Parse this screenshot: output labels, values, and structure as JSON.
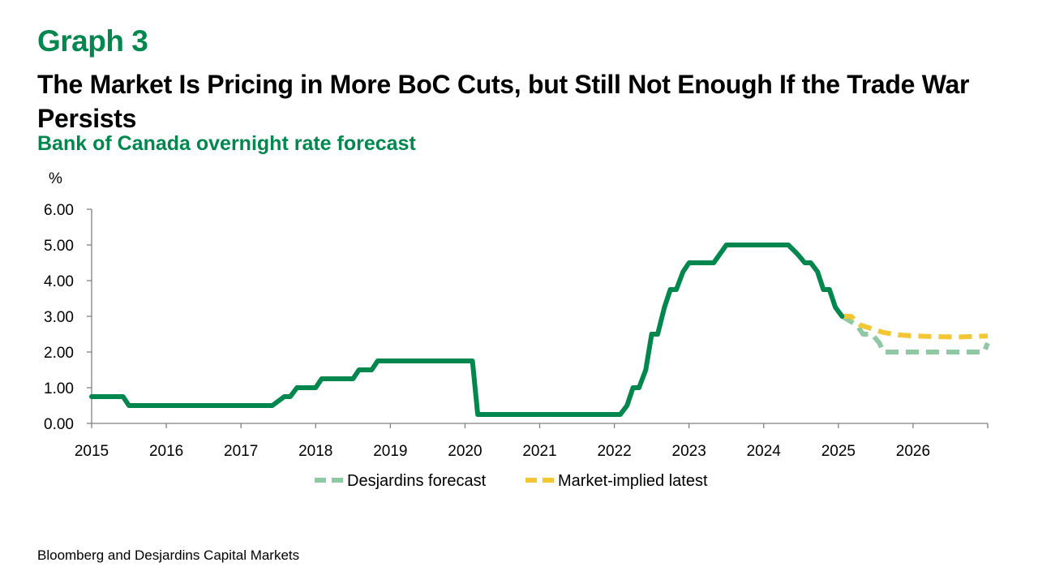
{
  "header": {
    "graph_label": "Graph 3",
    "title": "The Market Is Pricing in More BoC Cuts, but Still Not Enough If the Trade War Persists",
    "subtitle": "Bank of Canada overnight rate forecast"
  },
  "footer": {
    "source": "Bloomberg and Desjardins Capital Markets"
  },
  "chart_data": {
    "type": "line",
    "title": "",
    "xlabel": "",
    "ylabel": "%",
    "ylim": [
      0,
      6
    ],
    "xlim": [
      2015,
      2027
    ],
    "y_ticks": [
      "0.00",
      "1.00",
      "2.00",
      "3.00",
      "4.00",
      "5.00",
      "6.00"
    ],
    "x_ticks": [
      "2015",
      "2016",
      "2017",
      "2018",
      "2019",
      "2020",
      "2021",
      "2022",
      "2023",
      "2024",
      "2025",
      "2026"
    ],
    "grid": false,
    "legend_position": "bottom",
    "legend": [
      "Desjardins forecast",
      "Market-implied latest"
    ],
    "colors": {
      "actual": "#00874E",
      "desjardins_forecast": "#8FC9A4",
      "market_implied": "#F2C634"
    },
    "series": [
      {
        "key": "actual",
        "style": "solid",
        "points": [
          [
            2015.0,
            0.75
          ],
          [
            2015.42,
            0.75
          ],
          [
            2015.5,
            0.5
          ],
          [
            2017.42,
            0.5
          ],
          [
            2017.58,
            0.75
          ],
          [
            2017.66,
            0.75
          ],
          [
            2017.75,
            1.0
          ],
          [
            2018.0,
            1.0
          ],
          [
            2018.08,
            1.25
          ],
          [
            2018.5,
            1.25
          ],
          [
            2018.58,
            1.5
          ],
          [
            2018.75,
            1.5
          ],
          [
            2018.83,
            1.75
          ],
          [
            2020.1,
            1.75
          ],
          [
            2020.17,
            0.25
          ],
          [
            2022.08,
            0.25
          ],
          [
            2022.17,
            0.5
          ],
          [
            2022.25,
            1.0
          ],
          [
            2022.33,
            1.0
          ],
          [
            2022.42,
            1.5
          ],
          [
            2022.5,
            2.5
          ],
          [
            2022.58,
            2.5
          ],
          [
            2022.67,
            3.25
          ],
          [
            2022.75,
            3.75
          ],
          [
            2022.83,
            3.75
          ],
          [
            2022.92,
            4.25
          ],
          [
            2023.0,
            4.5
          ],
          [
            2023.33,
            4.5
          ],
          [
            2023.5,
            5.0
          ],
          [
            2024.33,
            5.0
          ],
          [
            2024.45,
            4.75
          ],
          [
            2024.55,
            4.5
          ],
          [
            2024.63,
            4.5
          ],
          [
            2024.72,
            4.25
          ],
          [
            2024.8,
            3.75
          ],
          [
            2024.88,
            3.75
          ],
          [
            2024.96,
            3.25
          ],
          [
            2025.05,
            3.0
          ]
        ]
      },
      {
        "key": "desjardins_forecast",
        "name": "Desjardins forecast",
        "style": "dashed",
        "points": [
          [
            2025.05,
            3.0
          ],
          [
            2025.25,
            2.75
          ],
          [
            2025.33,
            2.5
          ],
          [
            2025.45,
            2.5
          ],
          [
            2025.55,
            2.25
          ],
          [
            2025.6,
            2.0
          ],
          [
            2026.0,
            2.0
          ],
          [
            2026.95,
            2.0
          ],
          [
            2027.0,
            2.25
          ]
        ]
      },
      {
        "key": "market_implied",
        "name": "Market-implied latest",
        "style": "dashed",
        "points": [
          [
            2025.05,
            3.0
          ],
          [
            2025.17,
            3.0
          ],
          [
            2025.3,
            2.75
          ],
          [
            2025.45,
            2.65
          ],
          [
            2025.6,
            2.55
          ],
          [
            2025.8,
            2.48
          ],
          [
            2026.0,
            2.45
          ],
          [
            2026.3,
            2.43
          ],
          [
            2026.6,
            2.42
          ],
          [
            2027.0,
            2.45
          ]
        ]
      }
    ]
  }
}
